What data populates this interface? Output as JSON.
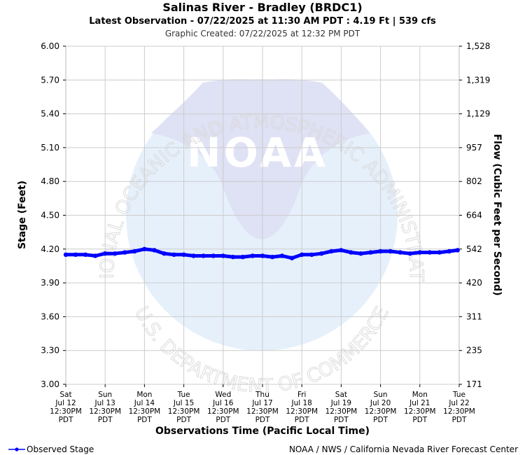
{
  "title": "Salinas River - Bradley (BRDC1)",
  "subtitle": "Latest Observation - 07/22/2025 at 11:30 AM PDT : 4.19 Ft | 539 cfs",
  "created": "Graphic Created: 07/22/2025 at 12:32 PM PDT",
  "watermark": {
    "logo_text": "NOAA",
    "ring_top": "NATIONAL OCEANIC AND ATMOSPHERIC ADMINISTRATION",
    "ring_bottom": "U.S. DEPARTMENT OF COMMERCE"
  },
  "footer": {
    "legend_label": "Observed Stage",
    "credit": "NOAA / NWS / California Nevada River Forecast Center"
  },
  "colors": {
    "series": "#0000ff",
    "grid": "#cccccc",
    "watermark_blue": "#d9e6f7"
  },
  "chart_data": {
    "type": "line",
    "title": "Salinas River - Bradley (BRDC1)",
    "xlabel": "Observations Time (Pacific Local Time)",
    "ylabel": "Stage (Feet)",
    "y2label": "Flow (Cubic Feet per Second)",
    "ylim": [
      3.0,
      6.0
    ],
    "grid": true,
    "legend": "bottom-left",
    "y_ticks": [
      "6.00",
      "5.70",
      "5.40",
      "5.10",
      "4.80",
      "4.50",
      "4.20",
      "3.90",
      "3.60",
      "3.30",
      "3.00"
    ],
    "y2_ticks": [
      "1,528",
      "1,319",
      "1,129",
      "957",
      "802",
      "664",
      "542",
      "420",
      "311",
      "235",
      "171"
    ],
    "x_ticks": [
      [
        "Sat",
        "Jul 12",
        "12:30PM",
        "PDT"
      ],
      [
        "Sun",
        "Jul 13",
        "12:30PM",
        "PDT"
      ],
      [
        "Mon",
        "Jul 14",
        "12:30PM",
        "PDT"
      ],
      [
        "Tue",
        "Jul 15",
        "12:30PM",
        "PDT"
      ],
      [
        "Wed",
        "Jul 16",
        "12:30PM",
        "PDT"
      ],
      [
        "Thu",
        "Jul 17",
        "12:30PM",
        "PDT"
      ],
      [
        "Fri",
        "Jul 18",
        "12:30PM",
        "PDT"
      ],
      [
        "Sat",
        "Jul 19",
        "12:30PM",
        "PDT"
      ],
      [
        "Sun",
        "Jul 20",
        "12:30PM",
        "PDT"
      ],
      [
        "Mon",
        "Jul 21",
        "12:30PM",
        "PDT"
      ],
      [
        "Tue",
        "Jul 22",
        "12:30PM",
        "PDT"
      ]
    ],
    "series": [
      {
        "name": "Observed Stage",
        "color": "#0000ff",
        "x": [
          "2025-07-12 12:30",
          "2025-07-12 18:30",
          "2025-07-13 00:30",
          "2025-07-13 06:30",
          "2025-07-13 12:30",
          "2025-07-13 18:30",
          "2025-07-14 00:30",
          "2025-07-14 06:30",
          "2025-07-14 12:30",
          "2025-07-14 18:30",
          "2025-07-15 00:30",
          "2025-07-15 06:30",
          "2025-07-15 12:30",
          "2025-07-15 18:30",
          "2025-07-16 00:30",
          "2025-07-16 06:30",
          "2025-07-16 12:30",
          "2025-07-16 18:30",
          "2025-07-17 00:30",
          "2025-07-17 06:30",
          "2025-07-17 12:30",
          "2025-07-17 18:30",
          "2025-07-18 00:30",
          "2025-07-18 06:30",
          "2025-07-18 12:30",
          "2025-07-18 18:30",
          "2025-07-19 00:30",
          "2025-07-19 06:30",
          "2025-07-19 12:30",
          "2025-07-19 18:30",
          "2025-07-20 00:30",
          "2025-07-20 06:30",
          "2025-07-20 12:30",
          "2025-07-20 18:30",
          "2025-07-21 00:30",
          "2025-07-21 06:30",
          "2025-07-21 12:30",
          "2025-07-21 18:30",
          "2025-07-22 00:30",
          "2025-07-22 06:30",
          "2025-07-22 11:30"
        ],
        "y": [
          4.15,
          4.15,
          4.15,
          4.14,
          4.16,
          4.16,
          4.17,
          4.18,
          4.2,
          4.19,
          4.16,
          4.15,
          4.15,
          4.14,
          4.14,
          4.14,
          4.14,
          4.13,
          4.13,
          4.14,
          4.14,
          4.13,
          4.14,
          4.12,
          4.15,
          4.15,
          4.16,
          4.18,
          4.19,
          4.17,
          4.16,
          4.17,
          4.18,
          4.18,
          4.17,
          4.16,
          4.17,
          4.17,
          4.17,
          4.18,
          4.19
        ]
      }
    ]
  }
}
